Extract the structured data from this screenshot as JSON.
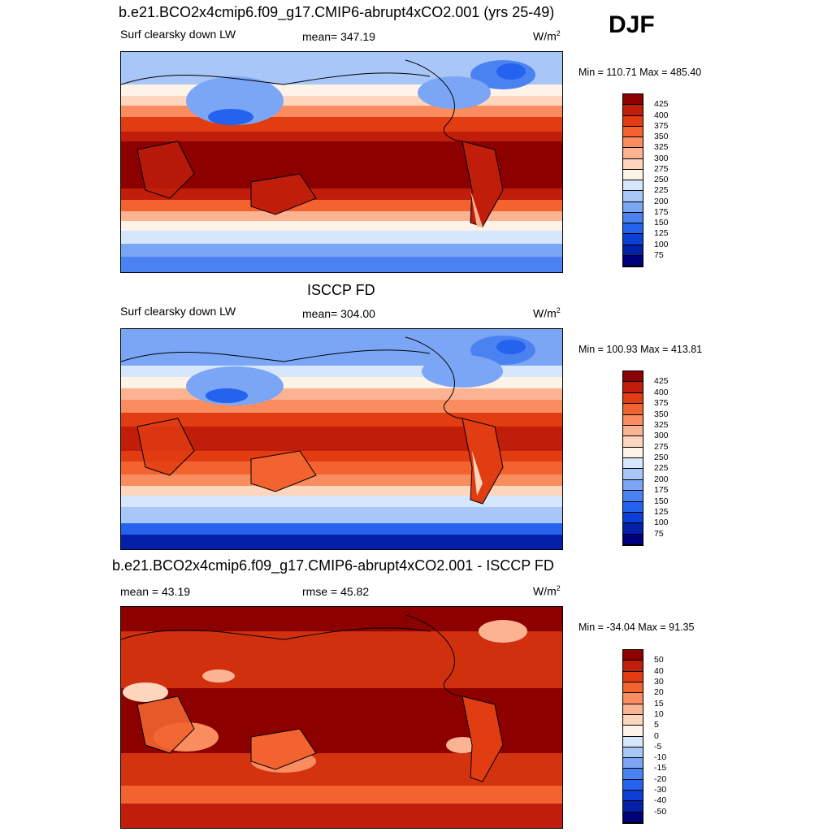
{
  "season": "DJF",
  "colors": [
    "#00007a",
    "#0520a8",
    "#0b3fd6",
    "#2563ee",
    "#4a82f2",
    "#7aa6f5",
    "#a8c6f8",
    "#d6e6fb",
    "#fff2e6",
    "#fdd6bd",
    "#fcb391",
    "#f98d60",
    "#f2632f",
    "#e13c12",
    "#c01e0b",
    "#8d0000"
  ],
  "chart_data": [
    {
      "type": "heatmap",
      "title": "b.e21.BCO2x4cmip6.f09_g17.CMIP6-abrupt4xCO2.001 (yrs 25-49)",
      "left_label": "Surf clearsky down LW",
      "center_label": "mean= 347.19",
      "units_base": "W/m",
      "units_exp": "2",
      "minmax": "Min = 110.71 Max = 485.40",
      "mean": 347.19,
      "min": 110.71,
      "max": 485.4,
      "levels": [
        "425",
        "400",
        "375",
        "350",
        "325",
        "300",
        "275",
        "250",
        "225",
        "200",
        "175",
        "150",
        "125",
        "100",
        "75"
      ]
    },
    {
      "type": "heatmap",
      "title": "ISCCP FD",
      "left_label": "Surf clearsky down LW",
      "center_label": "mean= 304.00",
      "units_base": "W/m",
      "units_exp": "2",
      "minmax": "Min = 100.93 Max = 413.81",
      "mean": 304.0,
      "min": 100.93,
      "max": 413.81,
      "levels": [
        "425",
        "400",
        "375",
        "350",
        "325",
        "300",
        "275",
        "250",
        "225",
        "200",
        "175",
        "150",
        "125",
        "100",
        "75"
      ]
    },
    {
      "type": "heatmap",
      "title": "b.e21.BCO2x4cmip6.f09_g17.CMIP6-abrupt4xCO2.001 - ISCCP FD",
      "left_label": "mean =  43.19",
      "center_label": "rmse =  45.82",
      "units_base": "W/m",
      "units_exp": "2",
      "minmax": "Min = -34.04 Max =  91.35",
      "mean": 43.19,
      "rmse": 45.82,
      "min": -34.04,
      "max": 91.35,
      "levels": [
        "50",
        "40",
        "30",
        "20",
        "15",
        "10",
        "5",
        "0",
        "-5",
        "-10",
        "-15",
        "-20",
        "-30",
        "-40",
        "-50"
      ]
    }
  ]
}
